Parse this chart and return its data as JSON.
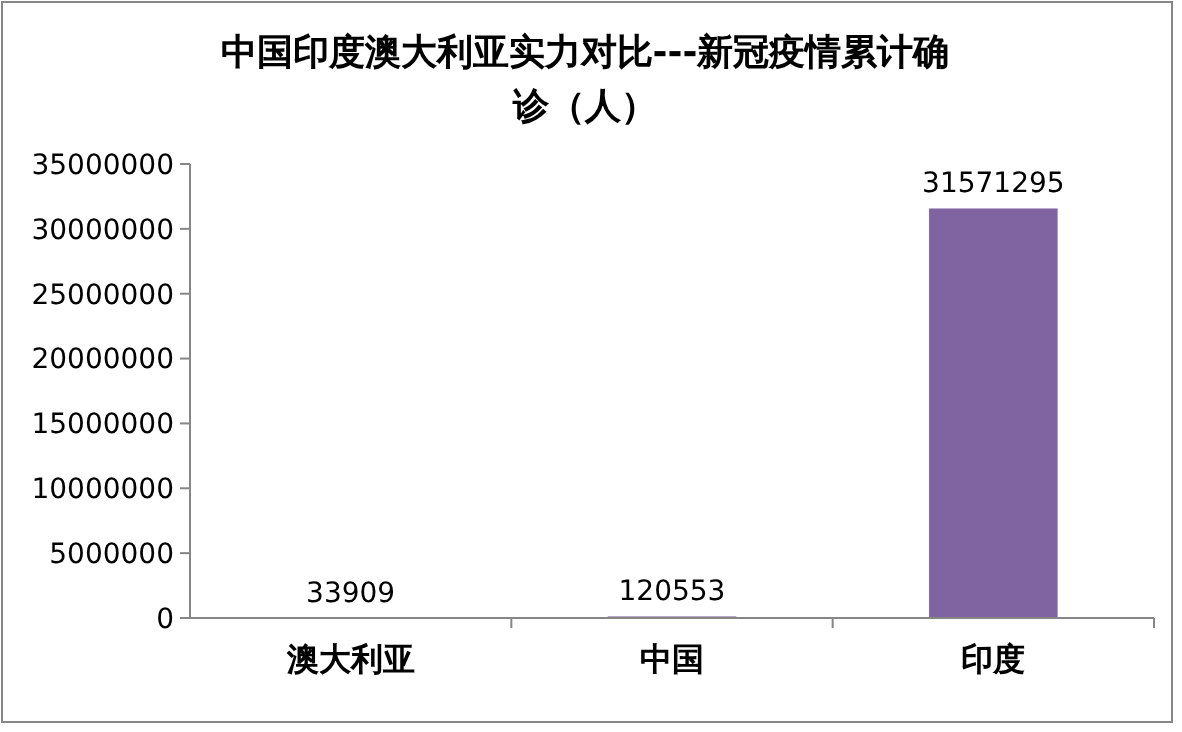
{
  "chart_data": {
    "type": "bar",
    "title": "中国印度澳大利亚实力对比---新冠疫情累计确诊（人）",
    "categories": [
      "澳大利亚",
      "中国",
      "印度"
    ],
    "values": [
      33909,
      120553,
      31571295
    ],
    "color": "#8064a2",
    "ylim": [
      0,
      35000000
    ],
    "yticks": [
      0,
      5000000,
      10000000,
      15000000,
      20000000,
      25000000,
      30000000,
      35000000
    ],
    "grid": false,
    "data_labels": true
  }
}
